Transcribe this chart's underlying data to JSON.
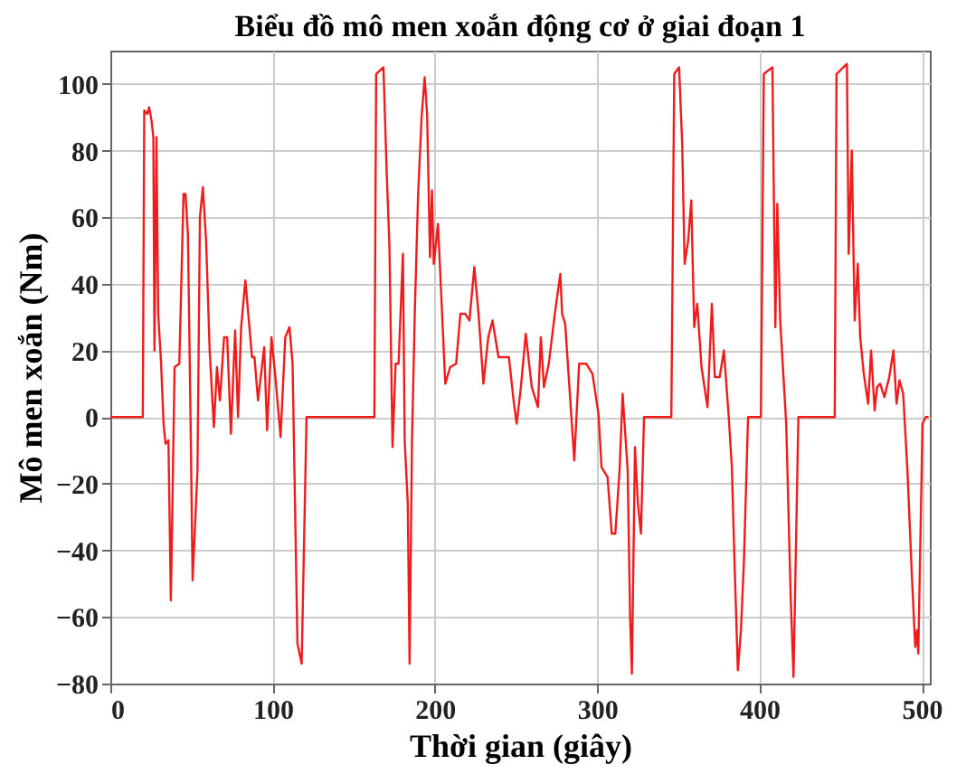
{
  "chart_data": {
    "type": "line",
    "title": "Biểu đồ mô men xoắn động cơ ở giai đoạn 1",
    "xlabel": "Thời gian (giây)",
    "ylabel": "Mô men xoắn (Nm)",
    "xlim": [
      0,
      505
    ],
    "ylim": [
      -80,
      110
    ],
    "xticks": [
      0,
      100,
      200,
      300,
      400,
      500
    ],
    "yticks": [
      -80,
      -60,
      -40,
      -20,
      0,
      20,
      40,
      60,
      80,
      100
    ],
    "grid": true,
    "series": [
      {
        "color": "#ee1c1c",
        "line_style": "solid",
        "x": [
          0,
          20,
          20.9,
          22.8,
          23.9,
          25.4,
          26.5,
          27.2,
          28.4,
          29.5,
          31.3,
          32.8,
          34,
          35.8,
          37.3,
          39.6,
          42.5,
          45.1,
          46.3,
          47.8,
          49.3,
          50.7,
          53.7,
          55.2,
          57,
          59,
          61.2,
          63.8,
          65.7,
          67.5,
          70.1,
          72,
          74.3,
          76.9,
          78.7,
          80.6,
          83.2,
          87.3,
          88.8,
          91,
          94.8,
          96.6,
          99.3,
          101.9,
          104.9,
          107.8,
          110.4,
          112.3,
          115.3,
          117.9,
          120.9,
          162.7,
          163.8,
          168.3,
          170.2,
          172,
          173.9,
          175.8,
          177.6,
          180.3,
          181.4,
          183.3,
          184.4,
          185.9,
          187.7,
          189.6,
          191.8,
          193.7,
          195.2,
          197,
          198.2,
          199.3,
          201.9,
          203.8,
          206.4,
          209.4,
          213.1,
          215.7,
          218.7,
          221.3,
          224.3,
          226.9,
          229.9,
          232.9,
          235.5,
          239.2,
          243,
          245.6,
          248.5,
          250.4,
          253,
          256,
          259.7,
          263.5,
          265.3,
          267.2,
          270.2,
          273.9,
          277.3,
          278.4,
          280.3,
          282.9,
          285.9,
          288.9,
          293.3,
          297.1,
          300.8,
          302.7,
          306.4,
          309,
          311.2,
          313.8,
          315.7,
          318.8,
          320.3,
          321.4,
          323.3,
          325.1,
          327,
          328.9,
          345.7,
          347.5,
          350.5,
          352.4,
          353.9,
          356.1,
          358,
          359.8,
          361.7,
          364.3,
          368,
          370.7,
          372.5,
          375.5,
          378.1,
          381.1,
          383,
          384.8,
          386.7,
          388.6,
          390.4,
          393,
          400.9,
          402.7,
          408,
          409.8,
          411,
          412.8,
          414.7,
          416.5,
          419.2,
          421,
          424,
          446.4,
          447.5,
          453.9,
          455,
          456.9,
          458.7,
          460.6,
          462.1,
          464.3,
          467,
          468.8,
          471,
          472.5,
          474.4,
          477,
          480,
          482.6,
          484.5,
          486.3,
          488.6,
          491.2,
          493.8,
          496,
          497.1,
          497.9,
          500.5,
          502.4,
          504.2
        ],
        "values": [
          0,
          0,
          92,
          91,
          93,
          89,
          84,
          20,
          84,
          31,
          16,
          -2,
          -8,
          -7,
          -55,
          15,
          16,
          67,
          67,
          55,
          4,
          -49,
          -16,
          60,
          69,
          53,
          20,
          -3,
          15,
          5,
          24,
          24,
          -5,
          26,
          0,
          27,
          41,
          18,
          18,
          5,
          21,
          -4,
          24,
          11,
          -6,
          24,
          27,
          16,
          -68,
          -74,
          0,
          0,
          103,
          105,
          75,
          51,
          -9,
          16,
          16,
          49,
          -7,
          -26,
          -74,
          -7,
          33,
          66,
          90,
          102,
          91,
          48,
          68,
          46,
          58,
          38,
          10,
          15,
          16,
          31,
          31,
          29,
          45,
          31,
          10,
          24,
          29,
          18,
          18,
          18,
          5,
          -2,
          9,
          25,
          9,
          3,
          24,
          9,
          16,
          31,
          43,
          31,
          28,
          9,
          -13,
          16,
          16,
          13,
          1,
          -15,
          -18,
          -35,
          -35,
          -16,
          7,
          -16,
          -60,
          -77,
          -9,
          -26,
          -35,
          0,
          0,
          103,
          105,
          82,
          46,
          53,
          65,
          27,
          34,
          15,
          3,
          34,
          12,
          12,
          20,
          0,
          -15,
          -46,
          -76,
          -64,
          -44,
          0,
          0,
          103,
          105,
          27,
          64,
          29,
          13,
          -2,
          -53,
          -78,
          0,
          0,
          103,
          106,
          49,
          80,
          29,
          46,
          24,
          13,
          4,
          20,
          2,
          9,
          10,
          6,
          12,
          20,
          4,
          11,
          7,
          -16,
          -46,
          -69,
          -64,
          -71,
          -2,
          0,
          0
        ]
      }
    ]
  }
}
